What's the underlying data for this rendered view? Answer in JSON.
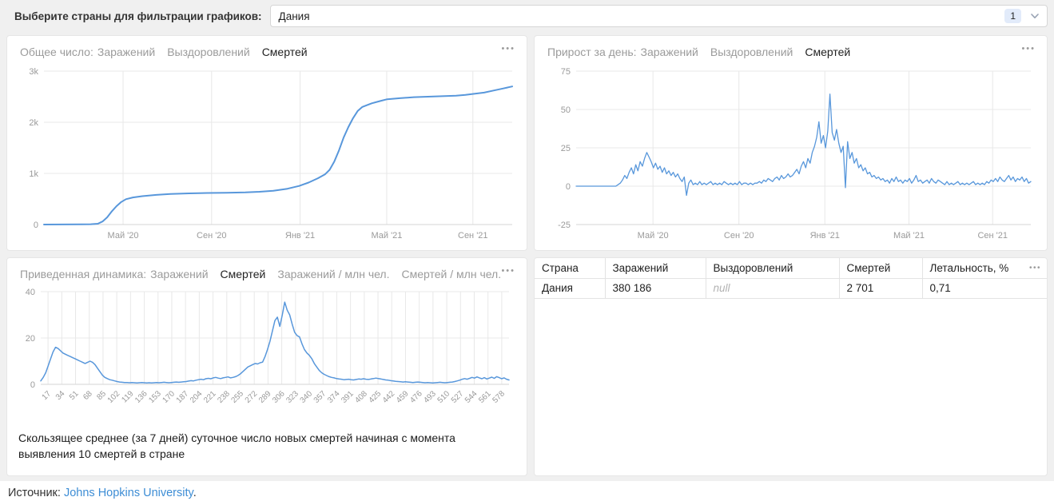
{
  "filter_bar": {
    "label": "Выберите страны для фильтрации графиков:",
    "selected_country": "Дания",
    "selected_count": "1"
  },
  "icons": {
    "ellipsis": "•••",
    "chevron_down": "chevron-down"
  },
  "panels": {
    "total": {
      "title_prefix": "Общее число:",
      "tabs": [
        {
          "label": "Заражений",
          "active": false
        },
        {
          "label": "Выздоровлений",
          "active": false
        },
        {
          "label": "Смертей",
          "active": true
        }
      ]
    },
    "daily": {
      "title_prefix": "Прирост за день:",
      "tabs": [
        {
          "label": "Заражений",
          "active": false
        },
        {
          "label": "Выздоровлений",
          "active": false
        },
        {
          "label": "Смертей",
          "active": true
        }
      ]
    },
    "normalized": {
      "title_prefix": "Приведенная динамика:",
      "tabs": [
        {
          "label": "Заражений",
          "active": false
        },
        {
          "label": "Смертей",
          "active": true
        },
        {
          "label": "Заражений / млн чел.",
          "active": false
        },
        {
          "label": "Смертей / млн чел.",
          "active": false
        }
      ],
      "caption": "Скользящее среднее (за 7 дней) суточное число новых смертей начиная с момента выявления 10 смертей в стране"
    }
  },
  "chart_data": [
    {
      "id": "total-deaths",
      "type": "line",
      "title": "Общее число: Смертей",
      "series_name": "Смертей",
      "color": "#5897db",
      "stroke_width": 2,
      "ylim": [
        0,
        3000
      ],
      "yticks": [
        {
          "v": 0,
          "label": "0"
        },
        {
          "v": 1000,
          "label": "1k"
        },
        {
          "v": 2000,
          "label": "2k"
        },
        {
          "v": 3000,
          "label": "3k"
        }
      ],
      "xticks": [
        {
          "f": 0.169,
          "label": "Май '20"
        },
        {
          "f": 0.358,
          "label": "Сен '20"
        },
        {
          "f": 0.547,
          "label": "Янв '21"
        },
        {
          "f": 0.732,
          "label": "Май '21"
        },
        {
          "f": 0.916,
          "label": "Сен '21"
        }
      ],
      "points": [
        [
          0,
          0
        ],
        [
          0.04,
          1
        ],
        [
          0.08,
          3
        ],
        [
          0.1,
          6
        ],
        [
          0.115,
          15
        ],
        [
          0.125,
          60
        ],
        [
          0.135,
          140
        ],
        [
          0.145,
          260
        ],
        [
          0.155,
          360
        ],
        [
          0.165,
          440
        ],
        [
          0.175,
          495
        ],
        [
          0.19,
          530
        ],
        [
          0.21,
          555
        ],
        [
          0.24,
          580
        ],
        [
          0.27,
          598
        ],
        [
          0.31,
          610
        ],
        [
          0.35,
          617
        ],
        [
          0.39,
          622
        ],
        [
          0.43,
          628
        ],
        [
          0.46,
          640
        ],
        [
          0.49,
          660
        ],
        [
          0.52,
          700
        ],
        [
          0.545,
          755
        ],
        [
          0.565,
          820
        ],
        [
          0.585,
          905
        ],
        [
          0.6,
          980
        ],
        [
          0.61,
          1070
        ],
        [
          0.62,
          1230
        ],
        [
          0.63,
          1450
        ],
        [
          0.64,
          1700
        ],
        [
          0.65,
          1905
        ],
        [
          0.66,
          2080
        ],
        [
          0.67,
          2220
        ],
        [
          0.68,
          2300
        ],
        [
          0.69,
          2335
        ],
        [
          0.7,
          2370
        ],
        [
          0.72,
          2420
        ],
        [
          0.733,
          2450
        ],
        [
          0.76,
          2470
        ],
        [
          0.79,
          2490
        ],
        [
          0.82,
          2500
        ],
        [
          0.85,
          2510
        ],
        [
          0.88,
          2520
        ],
        [
          0.9,
          2535
        ],
        [
          0.917,
          2555
        ],
        [
          0.94,
          2580
        ],
        [
          0.96,
          2620
        ],
        [
          0.98,
          2660
        ],
        [
          1,
          2700
        ]
      ]
    },
    {
      "id": "daily-deaths",
      "type": "line",
      "title": "Прирост за день: Смертей",
      "series_name": "Смертей",
      "color": "#5897db",
      "stroke_width": 1.3,
      "ylim": [
        -25,
        75
      ],
      "yticks": [
        {
          "v": -25,
          "label": "-25"
        },
        {
          "v": 0,
          "label": "0"
        },
        {
          "v": 25,
          "label": "25"
        },
        {
          "v": 50,
          "label": "50"
        },
        {
          "v": 75,
          "label": "75"
        }
      ],
      "xticks": [
        {
          "f": 0.169,
          "label": "Май '20"
        },
        {
          "f": 0.358,
          "label": "Сен '20"
        },
        {
          "f": 0.547,
          "label": "Янв '21"
        },
        {
          "f": 0.732,
          "label": "Май '21"
        },
        {
          "f": 0.916,
          "label": "Сен '21"
        }
      ],
      "values": [
        0,
        0,
        0,
        0,
        0,
        0,
        0,
        0,
        0,
        0,
        0,
        0,
        0,
        0,
        0,
        0,
        0,
        0,
        0,
        1,
        2,
        4,
        7,
        5,
        9,
        12,
        8,
        14,
        10,
        16,
        13,
        18,
        22,
        19,
        16,
        12,
        15,
        11,
        13,
        9,
        12,
        8,
        10,
        7,
        9,
        6,
        8,
        5,
        3,
        6,
        -6,
        2,
        4,
        1,
        2,
        1,
        3,
        1,
        2,
        1,
        2,
        3,
        1,
        2,
        1,
        2,
        1,
        3,
        2,
        1,
        2,
        1,
        2,
        1,
        3,
        1,
        2,
        2,
        1,
        2,
        1,
        2,
        2,
        3,
        2,
        4,
        3,
        5,
        4,
        3,
        5,
        6,
        4,
        7,
        5,
        6,
        8,
        6,
        7,
        9,
        11,
        8,
        13,
        16,
        12,
        18,
        15,
        22,
        26,
        32,
        42,
        28,
        33,
        25,
        36,
        60,
        35,
        30,
        37,
        28,
        22,
        26,
        -1,
        29,
        18,
        22,
        15,
        18,
        12,
        14,
        10,
        12,
        8,
        9,
        6,
        7,
        5,
        6,
        4,
        5,
        3,
        4,
        2,
        5,
        3,
        6,
        3,
        4,
        2,
        4,
        3,
        5,
        2,
        4,
        7,
        3,
        4,
        2,
        3,
        4,
        2,
        5,
        3,
        2,
        4,
        3,
        2,
        1,
        3,
        1,
        2,
        1,
        2,
        3,
        1,
        2,
        1,
        2,
        1,
        2,
        3,
        1,
        2,
        1,
        2,
        1,
        3,
        2,
        4,
        3,
        5,
        3,
        6,
        4,
        3,
        5,
        7,
        4,
        6,
        3,
        5,
        4,
        6,
        3,
        5,
        2,
        3
      ]
    },
    {
      "id": "normalized-deaths",
      "type": "line",
      "title": "Приведенная динамика: Смертей",
      "series_name": "Смертей",
      "color": "#5897db",
      "stroke_width": 1.5,
      "ylim": [
        0,
        40
      ],
      "yticks": [
        {
          "v": 0,
          "label": "0"
        },
        {
          "v": 20,
          "label": "20"
        },
        {
          "v": 40,
          "label": "40"
        }
      ],
      "x_day_start": 8,
      "x_day_end": 587,
      "xtick_days": [
        17,
        34,
        51,
        68,
        85,
        102,
        119,
        136,
        153,
        170,
        187,
        204,
        221,
        238,
        255,
        272,
        289,
        306,
        323,
        340,
        357,
        374,
        391,
        408,
        425,
        442,
        459,
        476,
        493,
        510,
        527,
        544,
        561,
        578
      ],
      "values": [
        1.5,
        3,
        5,
        8,
        11,
        14,
        16,
        15.5,
        14.5,
        13.5,
        13,
        12.5,
        12,
        11.5,
        11,
        10.5,
        10,
        9.5,
        9,
        9.5,
        10,
        9.5,
        8.5,
        7,
        5.5,
        4,
        3,
        2.5,
        2,
        1.8,
        1.5,
        1.2,
        1,
        0.9,
        0.8,
        0.8,
        0.7,
        0.8,
        0.7,
        0.6,
        0.7,
        0.8,
        0.7,
        0.6,
        0.7,
        0.6,
        0.7,
        0.8,
        0.7,
        0.8,
        0.9,
        0.8,
        0.7,
        0.8,
        0.9,
        1,
        0.9,
        1,
        1.1,
        1.2,
        1.4,
        1.6,
        1.5,
        1.8,
        2,
        2.2,
        2,
        2.4,
        2.6,
        2.4,
        2.8,
        3,
        2.7,
        2.5,
        2.8,
        3,
        3.2,
        2.8,
        3,
        3.3,
        3.8,
        4.5,
        5.5,
        6.5,
        7.5,
        8,
        8.5,
        9,
        8.8,
        9.3,
        9.6,
        12,
        15,
        18.5,
        23,
        27.5,
        29,
        25,
        30,
        35.5,
        32,
        30,
        26,
        22.5,
        21,
        20.5,
        17.5,
        15,
        13.5,
        12.5,
        11,
        9,
        7.5,
        6,
        5,
        4.3,
        3.8,
        3.3,
        3,
        2.8,
        2.5,
        2.3,
        2.2,
        2,
        2.1,
        2.2,
        2,
        1.9,
        2.1,
        2.3,
        2.2,
        2.4,
        2.2,
        2.1,
        2.3,
        2.5,
        2.7,
        2.5,
        2.3,
        2.1,
        1.9,
        1.8,
        1.6,
        1.5,
        1.3,
        1.2,
        1.1,
        1,
        1.1,
        1,
        0.9,
        0.8,
        0.9,
        1,
        0.9,
        0.8,
        0.7,
        0.8,
        0.7,
        0.6,
        0.7,
        0.8,
        0.9,
        0.8,
        0.7,
        0.8,
        0.9,
        1,
        1.2,
        1.5,
        1.8,
        2.2,
        2.5,
        2.2,
        2.6,
        3,
        2.7,
        3.2,
        2.8,
        2.4,
        2.9,
        2.3,
        2.7,
        3.1,
        2.6,
        3.3,
        2.9,
        2.4,
        2.8,
        2.2,
        1.9
      ]
    }
  ],
  "table": {
    "headers": [
      {
        "label": "Страна"
      },
      {
        "label": "Заражений"
      },
      {
        "label": "Выздоровлений"
      },
      {
        "label": "Смертей"
      },
      {
        "label": "Летальность, %"
      }
    ],
    "rows": [
      {
        "country": "Дания",
        "infected": "380 186",
        "recovered": "null",
        "deaths": "2 701",
        "lethality": "0,71"
      }
    ]
  },
  "footer": {
    "prefix": "Источник:",
    "link": "Johns Hopkins University",
    "suffix": "."
  }
}
